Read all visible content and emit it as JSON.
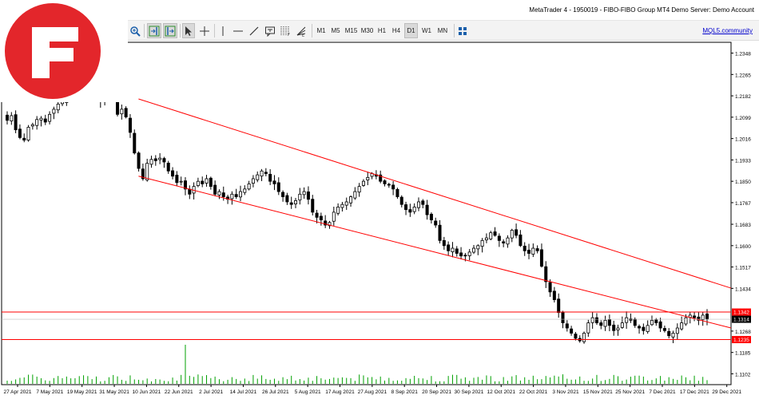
{
  "window": {
    "title": "MetaTrader 4 - 1950019 - FIBO-FIBO Group MT4 Demo Server: Demo Account"
  },
  "toolbar": {
    "timeframes": [
      "M1",
      "M5",
      "M15",
      "M30",
      "H1",
      "H4",
      "D1",
      "W1",
      "MN"
    ],
    "selected_timeframe": "D1",
    "community_link": "MQL5.community"
  },
  "colors": {
    "logo_red": "#e3262b",
    "trendline": "#ff0000",
    "candle": "#000000",
    "volume": "#00a000",
    "price_label_red": "#ff0000",
    "price_label_black": "#000000"
  },
  "icons": [
    "zoom-in-icon",
    "chart-shift-icon",
    "autoscroll-icon",
    "cursor-icon",
    "crosshair-icon",
    "vertical-line-icon",
    "horizontal-line-icon",
    "trendline-icon",
    "text-icon",
    "fibonacci-icon",
    "fibo-fan-icon",
    "window-layout-icon"
  ],
  "chart_data": {
    "type": "candlestick",
    "y_axis_ticks": [
      "1.2348",
      "1.2265",
      "1.2182",
      "1.2099",
      "1.2016",
      "1.1933",
      "1.1850",
      "1.1767",
      "1.1683",
      "1.1600",
      "1.1517",
      "1.1434",
      "1.1268",
      "1.1185",
      "1.1102"
    ],
    "ylim": [
      1.106,
      1.239
    ],
    "x_axis_ticks": [
      "27 Apr 2021",
      "7 May 2021",
      "19 May 2021",
      "31 May 2021",
      "10 Jun 2021",
      "22 Jun 2021",
      "2 Jul 2021",
      "14 Jul 2021",
      "26 Jul 2021",
      "5 Aug 2021",
      "17 Aug 2021",
      "27 Aug 2021",
      "8 Sep 2021",
      "20 Sep 2021",
      "30 Sep 2021",
      "12 Oct 2021",
      "22 Oct 2021",
      "3 Nov 2021",
      "15 Nov 2021",
      "25 Nov 2021",
      "7 Dec 2021",
      "17 Dec 2021",
      "29 Dec 2021"
    ],
    "horizontal_levels": [
      {
        "price": 1.1342,
        "label": "1.1342",
        "color": "#ff0000"
      },
      {
        "price": 1.1235,
        "label": "1.1235",
        "color": "#ff0000"
      }
    ],
    "current_price": {
      "price": 1.1314,
      "label": "1.1314"
    },
    "trendlines": [
      {
        "from": {
          "date": "10 Jun 2021",
          "price": 1.217
        },
        "to": {
          "date": "29 Dec 2021",
          "price": 1.1435
        }
      },
      {
        "from": {
          "date": "10 Jun 2021",
          "price": 1.187
        },
        "to": {
          "date": "29 Dec 2021",
          "price": 1.128
        }
      }
    ],
    "closes": [
      1.2087,
      1.2105,
      1.205,
      1.202,
      1.201,
      1.206,
      1.207,
      1.209,
      1.2095,
      1.208,
      1.211,
      1.213,
      1.215,
      1.216,
      1.217,
      1.2185,
      1.2195,
      1.22,
      1.221,
      1.219,
      1.2205,
      1.218,
      1.216,
      1.22,
      1.2215,
      1.2185,
      1.211,
      1.213,
      1.21,
      1.204,
      1.196,
      1.19,
      1.186,
      1.192,
      1.1935,
      1.193,
      1.194,
      1.1925,
      1.189,
      1.187,
      1.1845,
      1.185,
      1.182,
      1.18,
      1.183,
      1.185,
      1.184,
      1.186,
      1.183,
      1.18,
      1.181,
      1.179,
      1.178,
      1.18,
      1.179,
      1.181,
      1.182,
      1.184,
      1.186,
      1.1875,
      1.189,
      1.188,
      1.185,
      1.184,
      1.181,
      1.179,
      1.177,
      1.176,
      1.1775,
      1.18,
      1.181,
      1.178,
      1.173,
      1.171,
      1.17,
      1.168,
      1.169,
      1.173,
      1.175,
      1.176,
      1.177,
      1.179,
      1.181,
      1.183,
      1.185,
      1.1865,
      1.188,
      1.187,
      1.185,
      1.184,
      1.1835,
      1.182,
      1.179,
      1.176,
      1.174,
      1.173,
      1.175,
      1.177,
      1.176,
      1.172,
      1.17,
      1.168,
      1.162,
      1.16,
      1.158,
      1.159,
      1.157,
      1.156,
      1.156,
      1.1575,
      1.159,
      1.16,
      1.162,
      1.163,
      1.165,
      1.164,
      1.162,
      1.161,
      1.163,
      1.166,
      1.164,
      1.16,
      1.158,
      1.157,
      1.159,
      1.158,
      1.152,
      1.146,
      1.142,
      1.139,
      1.134,
      1.13,
      1.128,
      1.126,
      1.124,
      1.123,
      1.126,
      1.13,
      1.132,
      1.13,
      1.129,
      1.131,
      1.129,
      1.127,
      1.128,
      1.13,
      1.132,
      1.131,
      1.129,
      1.128,
      1.127,
      1.129,
      1.131,
      1.13,
      1.128,
      1.127,
      1.125,
      1.126,
      1.128,
      1.13,
      1.132,
      1.133,
      1.132,
      1.131,
      1.133,
      1.1314
    ],
    "grid": false
  }
}
